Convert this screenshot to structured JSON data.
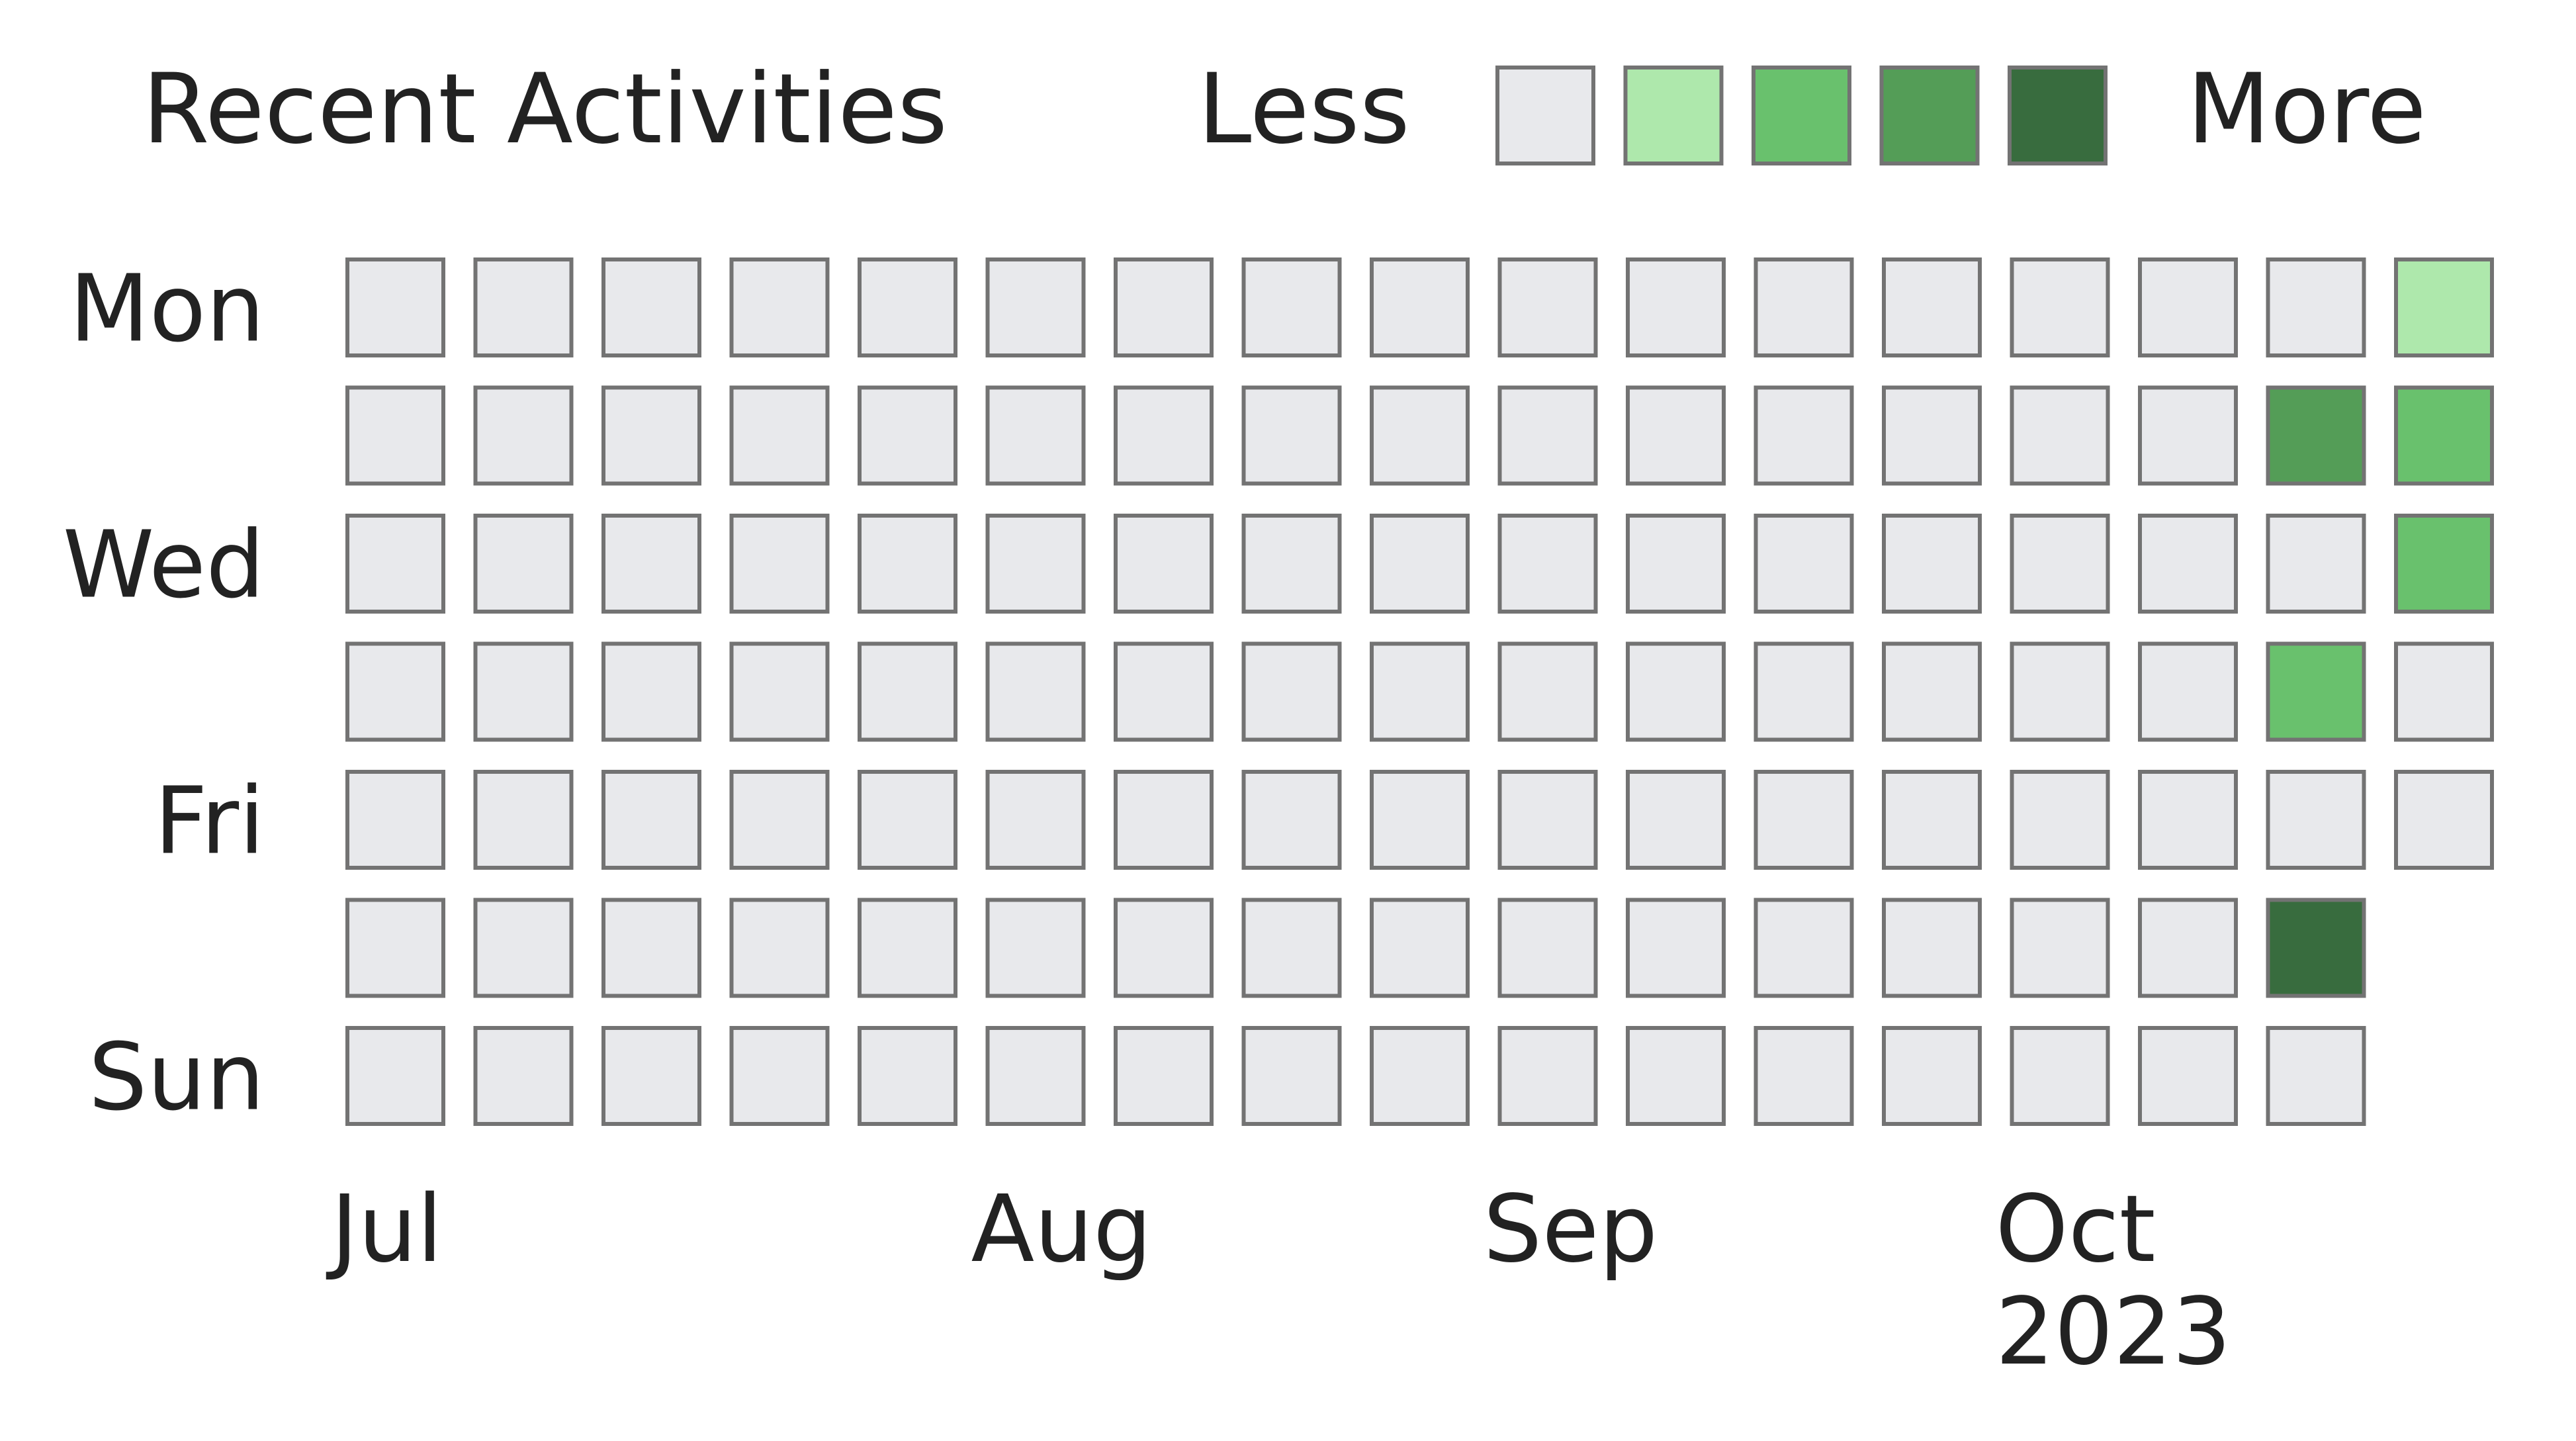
{
  "chart_data": {
    "type": "heatmap",
    "title": "Recent Activities",
    "legend": {
      "less_label": "Less",
      "more_label": "More",
      "placement": "top-right",
      "levels": [
        0,
        1,
        2,
        3,
        4
      ]
    },
    "colors": {
      "levels": [
        "#e8e9ec",
        "#aee8ac",
        "#69c16d",
        "#549d57",
        "#386c3e"
      ],
      "cell_border": "#737373",
      "text": "#222222"
    },
    "y_tick_labels": [
      {
        "row": 0,
        "label": "Mon"
      },
      {
        "row": 2,
        "label": "Wed"
      },
      {
        "row": 4,
        "label": "Fri"
      },
      {
        "row": 6,
        "label": "Sun"
      }
    ],
    "x_tick_labels": [
      {
        "column": 0,
        "label": "Jul"
      },
      {
        "column": 5,
        "label": "Aug"
      },
      {
        "column": 9,
        "label": "Sep"
      },
      {
        "column": 13,
        "label": "Oct",
        "sublabel": "2023"
      }
    ],
    "rows": 7,
    "columns": 17,
    "grid": false,
    "values": [
      [
        0,
        0,
        0,
        0,
        0,
        0,
        0,
        0,
        0,
        0,
        0,
        0,
        0,
        0,
        0,
        0,
        1
      ],
      [
        0,
        0,
        0,
        0,
        0,
        0,
        0,
        0,
        0,
        0,
        0,
        0,
        0,
        0,
        0,
        3,
        2
      ],
      [
        0,
        0,
        0,
        0,
        0,
        0,
        0,
        0,
        0,
        0,
        0,
        0,
        0,
        0,
        0,
        0,
        2
      ],
      [
        0,
        0,
        0,
        0,
        0,
        0,
        0,
        0,
        0,
        0,
        0,
        0,
        0,
        0,
        0,
        2,
        0
      ],
      [
        0,
        0,
        0,
        0,
        0,
        0,
        0,
        0,
        0,
        0,
        0,
        0,
        0,
        0,
        0,
        0,
        0
      ],
      [
        0,
        0,
        0,
        0,
        0,
        0,
        0,
        0,
        0,
        0,
        0,
        0,
        0,
        0,
        0,
        4,
        null
      ],
      [
        0,
        0,
        0,
        0,
        0,
        0,
        0,
        0,
        0,
        0,
        0,
        0,
        0,
        0,
        0,
        0,
        null
      ]
    ]
  }
}
